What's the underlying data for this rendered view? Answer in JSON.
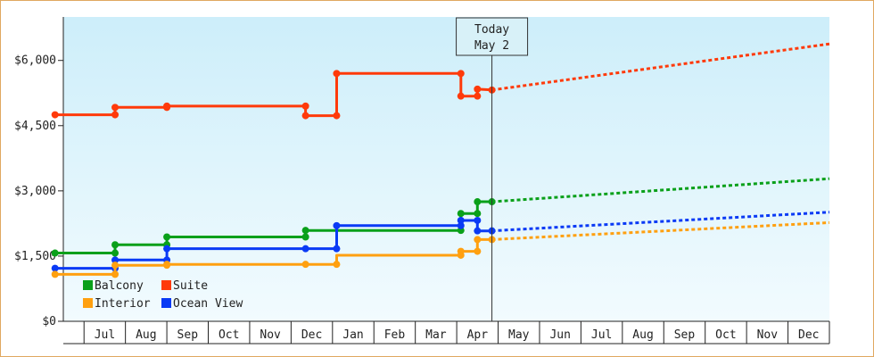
{
  "chart_data": {
    "type": "line",
    "ylim": [
      0,
      7000
    ],
    "y_ticks": [
      "$0",
      "$1,500",
      "$3,000",
      "$4,500",
      "$6,000"
    ],
    "y_tick_values": [
      0,
      1500,
      3000,
      4500,
      6000
    ],
    "x_ticks": [
      "Jul",
      "Aug",
      "Sep",
      "Oct",
      "Nov",
      "Dec",
      "Jan",
      "Feb",
      "Mar",
      "Apr",
      "May",
      "Jun",
      "Jul",
      "Aug",
      "Sep",
      "Oct",
      "Nov",
      "Dec"
    ],
    "xlim": [
      0,
      18.5
    ],
    "today": {
      "label_line1": "Today",
      "label_line2": "May 2",
      "x": 10.35
    },
    "background": {
      "top": "#cdeefa",
      "bottom": "#f2fbfe"
    },
    "legend": [
      {
        "name": "Balcony",
        "color": "#0aa01a"
      },
      {
        "name": "Suite",
        "color": "#ff3a0a"
      },
      {
        "name": "Interior",
        "color": "#ffa010"
      },
      {
        "name": "Ocean View",
        "color": "#0a3af5"
      }
    ],
    "series": [
      {
        "name": "Suite",
        "color": "#ff3a0a",
        "points": [
          [
            -0.2,
            4750
          ],
          [
            1.25,
            4750
          ],
          [
            1.25,
            4920
          ],
          [
            2.5,
            4920
          ],
          [
            2.5,
            4950
          ],
          [
            5.85,
            4950
          ],
          [
            5.85,
            4730
          ],
          [
            6.6,
            4730
          ],
          [
            6.6,
            5700
          ],
          [
            9.6,
            5700
          ],
          [
            9.6,
            5180
          ],
          [
            10.0,
            5180
          ],
          [
            10.0,
            5340
          ],
          [
            10.35,
            5320
          ]
        ],
        "markers": [
          [
            -0.2,
            4750
          ],
          [
            1.25,
            4750
          ],
          [
            1.25,
            4920
          ],
          [
            2.5,
            4920
          ],
          [
            2.5,
            4950
          ],
          [
            5.85,
            4950
          ],
          [
            5.85,
            4730
          ],
          [
            6.6,
            4730
          ],
          [
            6.6,
            5700
          ],
          [
            9.6,
            5700
          ],
          [
            9.6,
            5180
          ],
          [
            10.0,
            5180
          ],
          [
            10.0,
            5340
          ],
          [
            10.35,
            5320
          ]
        ],
        "forecast": [
          [
            10.35,
            5320
          ],
          [
            18.5,
            6380
          ]
        ]
      },
      {
        "name": "Balcony",
        "color": "#0aa01a",
        "points": [
          [
            -0.2,
            1570
          ],
          [
            1.25,
            1570
          ],
          [
            1.25,
            1760
          ],
          [
            2.5,
            1760
          ],
          [
            2.5,
            1940
          ],
          [
            5.85,
            1940
          ],
          [
            5.85,
            2090
          ],
          [
            9.6,
            2090
          ],
          [
            9.6,
            2480
          ],
          [
            10.0,
            2480
          ],
          [
            10.0,
            2750
          ],
          [
            10.35,
            2750
          ]
        ],
        "markers": [
          [
            -0.2,
            1570
          ],
          [
            1.25,
            1570
          ],
          [
            1.25,
            1760
          ],
          [
            2.5,
            1760
          ],
          [
            2.5,
            1940
          ],
          [
            5.85,
            1940
          ],
          [
            5.85,
            2090
          ],
          [
            9.6,
            2090
          ],
          [
            9.6,
            2480
          ],
          [
            10.0,
            2480
          ],
          [
            10.0,
            2750
          ],
          [
            10.35,
            2750
          ]
        ],
        "forecast": [
          [
            10.35,
            2750
          ],
          [
            18.5,
            3280
          ]
        ]
      },
      {
        "name": "Ocean View",
        "color": "#0a3af5",
        "points": [
          [
            -0.2,
            1220
          ],
          [
            1.25,
            1220
          ],
          [
            1.25,
            1410
          ],
          [
            2.5,
            1410
          ],
          [
            2.5,
            1670
          ],
          [
            6.6,
            1670
          ],
          [
            6.6,
            2200
          ],
          [
            9.6,
            2200
          ],
          [
            9.6,
            2320
          ],
          [
            10.0,
            2320
          ],
          [
            10.0,
            2080
          ],
          [
            10.35,
            2080
          ]
        ],
        "markers": [
          [
            -0.2,
            1220
          ],
          [
            1.25,
            1220
          ],
          [
            1.25,
            1410
          ],
          [
            2.5,
            1410
          ],
          [
            2.5,
            1670
          ],
          [
            5.85,
            1670
          ],
          [
            6.6,
            1670
          ],
          [
            6.6,
            2200
          ],
          [
            9.6,
            2200
          ],
          [
            9.6,
            2320
          ],
          [
            10.0,
            2320
          ],
          [
            10.0,
            2080
          ],
          [
            10.35,
            2080
          ]
        ],
        "forecast": [
          [
            10.35,
            2080
          ],
          [
            18.5,
            2510
          ]
        ]
      },
      {
        "name": "Interior",
        "color": "#ffa010",
        "points": [
          [
            -0.2,
            1080
          ],
          [
            1.25,
            1080
          ],
          [
            1.25,
            1290
          ],
          [
            2.5,
            1290
          ],
          [
            2.5,
            1310
          ],
          [
            5.85,
            1310
          ],
          [
            6.6,
            1310
          ],
          [
            6.6,
            1520
          ],
          [
            9.6,
            1520
          ],
          [
            9.6,
            1610
          ],
          [
            10.0,
            1610
          ],
          [
            10.0,
            1880
          ],
          [
            10.35,
            1880
          ]
        ],
        "markers": [
          [
            -0.2,
            1080
          ],
          [
            1.25,
            1080
          ],
          [
            1.25,
            1290
          ],
          [
            2.5,
            1290
          ],
          [
            2.5,
            1310
          ],
          [
            5.85,
            1310
          ],
          [
            6.6,
            1310
          ],
          [
            9.6,
            1520
          ],
          [
            9.6,
            1610
          ],
          [
            10.0,
            1610
          ],
          [
            10.0,
            1880
          ],
          [
            10.35,
            1880
          ]
        ],
        "forecast": [
          [
            10.35,
            1880
          ],
          [
            18.5,
            2270
          ]
        ]
      }
    ]
  }
}
